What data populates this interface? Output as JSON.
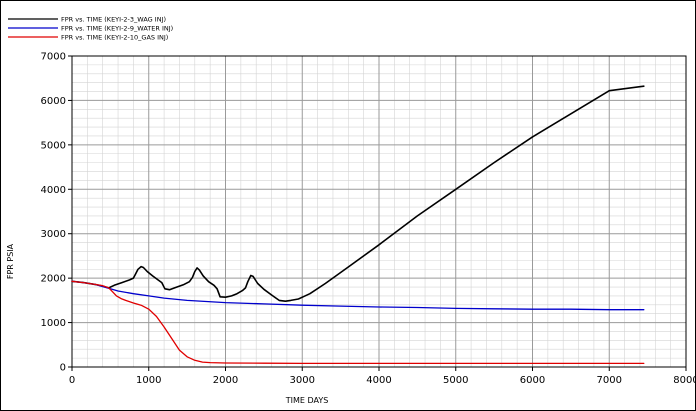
{
  "chart_data": {
    "type": "line",
    "title": "",
    "xlabel": "TIME   DAYS",
    "ylabel": "FPR    PSIA",
    "xlim": [
      0,
      8000
    ],
    "ylim": [
      0,
      7000
    ],
    "xticks": [
      0,
      1000,
      2000,
      3000,
      4000,
      5000,
      6000,
      7000,
      8000
    ],
    "yticks": [
      0,
      1000,
      2000,
      3000,
      4000,
      5000,
      6000,
      7000
    ],
    "x_minor_step": 200,
    "y_minor_step": 200,
    "grid": true,
    "legend_position": "top-left",
    "series": [
      {
        "name": "FPR vs. TIME (KEYI-2-3_WAG INJ)",
        "color": "#000000",
        "points": [
          [
            0,
            1930
          ],
          [
            150,
            1900
          ],
          [
            300,
            1860
          ],
          [
            400,
            1820
          ],
          [
            480,
            1780
          ],
          [
            550,
            1840
          ],
          [
            650,
            1900
          ],
          [
            750,
            1960
          ],
          [
            800,
            2000
          ],
          [
            830,
            2100
          ],
          [
            860,
            2200
          ],
          [
            900,
            2260
          ],
          [
            930,
            2240
          ],
          [
            980,
            2150
          ],
          [
            1050,
            2050
          ],
          [
            1120,
            1960
          ],
          [
            1170,
            1900
          ],
          [
            1210,
            1760
          ],
          [
            1270,
            1740
          ],
          [
            1350,
            1790
          ],
          [
            1450,
            1850
          ],
          [
            1530,
            1920
          ],
          [
            1570,
            2020
          ],
          [
            1600,
            2150
          ],
          [
            1630,
            2230
          ],
          [
            1660,
            2180
          ],
          [
            1710,
            2050
          ],
          [
            1780,
            1920
          ],
          [
            1850,
            1840
          ],
          [
            1890,
            1760
          ],
          [
            1930,
            1580
          ],
          [
            2000,
            1570
          ],
          [
            2080,
            1600
          ],
          [
            2150,
            1650
          ],
          [
            2220,
            1720
          ],
          [
            2260,
            1780
          ],
          [
            2290,
            1920
          ],
          [
            2330,
            2060
          ],
          [
            2360,
            2040
          ],
          [
            2420,
            1880
          ],
          [
            2500,
            1750
          ],
          [
            2600,
            1620
          ],
          [
            2700,
            1500
          ],
          [
            2780,
            1480
          ],
          [
            2850,
            1500
          ],
          [
            2950,
            1530
          ],
          [
            3000,
            1570
          ],
          [
            3100,
            1650
          ],
          [
            3300,
            1880
          ],
          [
            3600,
            2250
          ],
          [
            4000,
            2750
          ],
          [
            4500,
            3400
          ],
          [
            5000,
            4000
          ],
          [
            5500,
            4600
          ],
          [
            6000,
            5180
          ],
          [
            6500,
            5700
          ],
          [
            7000,
            6220
          ],
          [
            7450,
            6320
          ]
        ]
      },
      {
        "name": "FPR vs. TIME (KEYI-2-9_WATER INJ)",
        "color": "#0000cc",
        "points": [
          [
            0,
            1930
          ],
          [
            150,
            1900
          ],
          [
            300,
            1860
          ],
          [
            400,
            1810
          ],
          [
            500,
            1760
          ],
          [
            600,
            1710
          ],
          [
            800,
            1650
          ],
          [
            1000,
            1600
          ],
          [
            1200,
            1550
          ],
          [
            1500,
            1500
          ],
          [
            2000,
            1450
          ],
          [
            2500,
            1420
          ],
          [
            3000,
            1390
          ],
          [
            3500,
            1370
          ],
          [
            4000,
            1350
          ],
          [
            4500,
            1340
          ],
          [
            5000,
            1320
          ],
          [
            5500,
            1310
          ],
          [
            6000,
            1300
          ],
          [
            6500,
            1300
          ],
          [
            7000,
            1290
          ],
          [
            7450,
            1290
          ]
        ]
      },
      {
        "name": "FPR vs. TIME (KEYI-2-10_GAS INJ)",
        "color": "#e00000",
        "points": [
          [
            0,
            1930
          ],
          [
            150,
            1900
          ],
          [
            300,
            1860
          ],
          [
            400,
            1830
          ],
          [
            480,
            1780
          ],
          [
            530,
            1690
          ],
          [
            580,
            1600
          ],
          [
            640,
            1540
          ],
          [
            700,
            1500
          ],
          [
            800,
            1440
          ],
          [
            900,
            1390
          ],
          [
            1000,
            1300
          ],
          [
            1100,
            1140
          ],
          [
            1200,
            900
          ],
          [
            1300,
            640
          ],
          [
            1400,
            380
          ],
          [
            1500,
            230
          ],
          [
            1600,
            150
          ],
          [
            1700,
            110
          ],
          [
            1800,
            100
          ],
          [
            2000,
            90
          ],
          [
            2500,
            85
          ],
          [
            3000,
            82
          ],
          [
            4000,
            80
          ],
          [
            5000,
            80
          ],
          [
            6000,
            80
          ],
          [
            7000,
            80
          ],
          [
            7450,
            80
          ]
        ]
      }
    ]
  }
}
